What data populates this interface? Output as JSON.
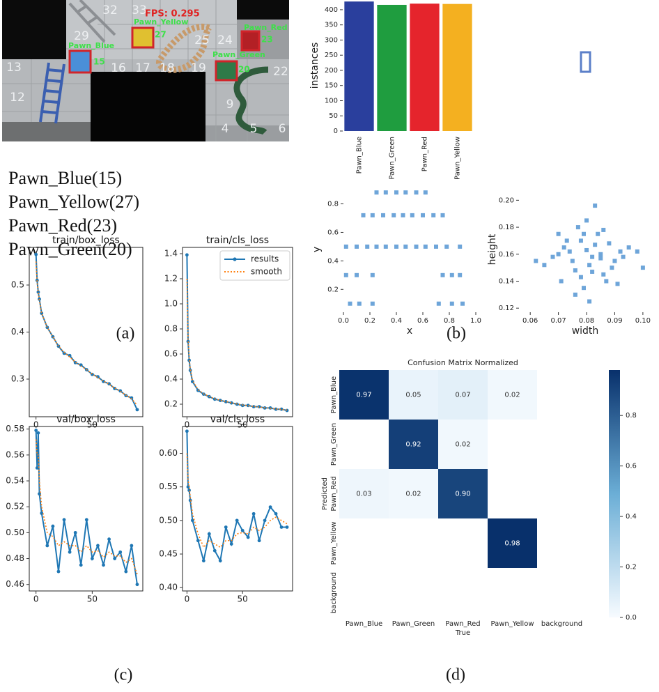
{
  "photo": {
    "fps": "FPS: 0.295",
    "board_numbers": [
      "32",
      "33",
      "29",
      "13",
      "16",
      "17",
      "18",
      "19",
      "25",
      "24",
      "22",
      "12",
      "9",
      "4",
      "5",
      "6"
    ],
    "detections": [
      "Pawn_Red",
      "Pawn_Blue",
      "Pawn_Yellow",
      "Pawn_Green"
    ],
    "box_numbers": [
      "15",
      "27",
      "23",
      "20"
    ]
  },
  "detections": [
    "Pawn_Blue(15)",
    "Pawn_Yellow(27)",
    "Pawn_Red(23)",
    "Pawn_Green(20)"
  ],
  "captions": [
    "(a)",
    "(b)",
    "(c)",
    "(d)"
  ],
  "chart_data": [
    {
      "type": "bar",
      "ylabel": "instances",
      "categories": [
        "Pawn_Blue",
        "Pawn_Green",
        "Pawn_Red",
        "Pawn_Yellow"
      ],
      "values": [
        427,
        416,
        420,
        419
      ],
      "colors": [
        "#2a3f9d",
        "#1f9d3f",
        "#e5242c",
        "#f4b020"
      ],
      "ylim": [
        0,
        432
      ],
      "yticks": [
        0,
        50,
        100,
        150,
        200,
        250,
        300,
        350,
        400
      ]
    },
    {
      "type": "scatter",
      "xlabel": "x",
      "ylabel": "y",
      "color": "#4a8fd0",
      "x": [
        0.25,
        0.32,
        0.4,
        0.47,
        0.55,
        0.62,
        0.15,
        0.22,
        0.3,
        0.38,
        0.45,
        0.52,
        0.6,
        0.68,
        0.75,
        0.02,
        0.1,
        0.18,
        0.25,
        0.32,
        0.4,
        0.47,
        0.55,
        0.62,
        0.7,
        0.78,
        0.88,
        0.02,
        0.1,
        0.22,
        0.75,
        0.82,
        0.88,
        0.05,
        0.12,
        0.22,
        0.72,
        0.82,
        0.9
      ],
      "y": [
        0.88,
        0.88,
        0.88,
        0.88,
        0.88,
        0.88,
        0.72,
        0.72,
        0.72,
        0.72,
        0.72,
        0.72,
        0.72,
        0.72,
        0.72,
        0.5,
        0.5,
        0.5,
        0.5,
        0.5,
        0.5,
        0.5,
        0.5,
        0.5,
        0.5,
        0.5,
        0.5,
        0.3,
        0.3,
        0.3,
        0.3,
        0.3,
        0.3,
        0.1,
        0.1,
        0.1,
        0.1,
        0.1,
        0.1
      ],
      "xlim": [
        0,
        1
      ],
      "ylim": [
        0.04,
        0.92
      ],
      "xticks": [
        {
          "value": 0,
          "label": "0.0"
        },
        0.2,
        0.4,
        0.6,
        0.8,
        {
          "value": 1,
          "label": "1.0"
        }
      ],
      "yticks": [
        0.2,
        0.4,
        0.6,
        0.8
      ]
    },
    {
      "type": "scatter",
      "xlabel": "width",
      "ylabel": "height",
      "color": "#4a8fd0",
      "x": [
        0.07,
        0.072,
        0.075,
        0.078,
        0.08,
        0.082,
        0.085,
        0.088,
        0.09,
        0.076,
        0.079,
        0.081,
        0.083,
        0.086,
        0.074,
        0.071,
        0.068,
        0.092,
        0.095,
        0.065,
        0.077,
        0.084,
        0.087,
        0.073,
        0.079,
        0.081,
        0.089,
        0.093,
        0.062,
        0.098,
        0.1,
        0.08,
        0.083,
        0.076,
        0.086,
        0.078,
        0.082,
        0.07,
        0.091,
        0.085
      ],
      "y": [
        0.16,
        0.165,
        0.155,
        0.17,
        0.163,
        0.158,
        0.16,
        0.168,
        0.155,
        0.148,
        0.175,
        0.152,
        0.167,
        0.145,
        0.162,
        0.14,
        0.158,
        0.162,
        0.165,
        0.152,
        0.18,
        0.175,
        0.14,
        0.17,
        0.135,
        0.125,
        0.15,
        0.158,
        0.155,
        0.162,
        0.15,
        0.185,
        0.196,
        0.13,
        0.178,
        0.143,
        0.147,
        0.175,
        0.138,
        0.157
      ],
      "xlim": [
        0.056,
        0.103
      ],
      "ylim": [
        0.117,
        0.21
      ],
      "xticks": [
        0.06,
        0.07,
        0.08,
        0.09,
        {
          "value": 0.1,
          "label": "0.10"
        }
      ],
      "yticks": [
        0.12,
        0.14,
        0.16,
        0.18,
        {
          "value": 0.2,
          "label": "0.20"
        }
      ]
    },
    {
      "type": "line",
      "title": "train/box_loss",
      "x": [
        0,
        1,
        2,
        3,
        5,
        10,
        15,
        20,
        25,
        30,
        35,
        40,
        45,
        50,
        55,
        60,
        65,
        70,
        75,
        80,
        85,
        90
      ],
      "series": [
        {
          "color": "#1f77b4",
          "values": [
            0.565,
            0.51,
            0.485,
            0.47,
            0.44,
            0.41,
            0.39,
            0.37,
            0.355,
            0.35,
            0.335,
            0.33,
            0.32,
            0.31,
            0.305,
            0.295,
            0.29,
            0.28,
            0.275,
            0.265,
            0.26,
            0.235
          ]
        },
        {
          "color": "#ff7f0e",
          "values": [
            0.55,
            0.505,
            0.485,
            0.468,
            0.44,
            0.41,
            0.39,
            0.37,
            0.357,
            0.347,
            0.336,
            0.328,
            0.32,
            0.311,
            0.303,
            0.296,
            0.289,
            0.281,
            0.274,
            0.266,
            0.258,
            0.245
          ]
        }
      ],
      "xlim": [
        -6,
        95
      ],
      "ylim": [
        0.22,
        0.58
      ],
      "xticks": [
        0,
        50
      ],
      "yticks": [
        0.3,
        0.4,
        0.5
      ]
    },
    {
      "type": "line",
      "title": "train/cls_loss",
      "legend": "upper right",
      "x": [
        0,
        1,
        2,
        3,
        5,
        10,
        15,
        20,
        25,
        30,
        35,
        40,
        45,
        50,
        55,
        60,
        65,
        70,
        75,
        80,
        85,
        90
      ],
      "series": [
        {
          "name": "results",
          "color": "#1f77b4",
          "values": [
            1.39,
            0.7,
            0.55,
            0.47,
            0.38,
            0.31,
            0.28,
            0.26,
            0.24,
            0.23,
            0.22,
            0.21,
            0.2,
            0.19,
            0.19,
            0.18,
            0.18,
            0.17,
            0.17,
            0.16,
            0.16,
            0.15
          ]
        },
        {
          "name": "smooth",
          "color": "#ff7f0e",
          "values": [
            1.2,
            0.72,
            0.57,
            0.48,
            0.39,
            0.315,
            0.283,
            0.262,
            0.243,
            0.231,
            0.221,
            0.211,
            0.202,
            0.194,
            0.188,
            0.182,
            0.177,
            0.172,
            0.167,
            0.162,
            0.158,
            0.153
          ]
        }
      ],
      "xlim": [
        -4,
        95
      ],
      "ylim": [
        0.1,
        1.45
      ],
      "xticks": [
        0,
        50
      ],
      "yticks": [
        0.2,
        0.4,
        0.6,
        0.8,
        {
          "value": 1,
          "label": "1.0"
        },
        1.2,
        1.4
      ]
    },
    {
      "type": "line",
      "title": "val/box_loss",
      "x": [
        0,
        1,
        2,
        3,
        5,
        10,
        15,
        20,
        25,
        30,
        35,
        40,
        45,
        50,
        55,
        60,
        65,
        70,
        75,
        80,
        85,
        90
      ],
      "series": [
        {
          "color": "#1f77b4",
          "values": [
            0.579,
            0.55,
            0.577,
            0.53,
            0.515,
            0.49,
            0.505,
            0.47,
            0.51,
            0.485,
            0.5,
            0.475,
            0.51,
            0.48,
            0.49,
            0.475,
            0.495,
            0.48,
            0.485,
            0.47,
            0.49,
            0.46
          ]
        },
        {
          "color": "#ff7f0e",
          "values": [
            0.572,
            0.56,
            0.56,
            0.54,
            0.52,
            0.5,
            0.497,
            0.49,
            0.493,
            0.49,
            0.49,
            0.485,
            0.49,
            0.485,
            0.486,
            0.481,
            0.485,
            0.482,
            0.482,
            0.477,
            0.48,
            0.468
          ]
        }
      ],
      "xlim": [
        -6,
        95
      ],
      "ylim": [
        0.455,
        0.582
      ],
      "xticks": [
        0,
        50
      ],
      "yticks": [
        0.46,
        0.48,
        {
          "value": 0.5,
          "label": "0.50"
        },
        0.52,
        0.54,
        0.56,
        0.58
      ]
    },
    {
      "type": "line",
      "title": "val/cls_loss",
      "x": [
        0,
        1,
        2,
        3,
        5,
        10,
        15,
        20,
        25,
        30,
        35,
        40,
        45,
        50,
        55,
        60,
        65,
        70,
        75,
        80,
        85,
        90
      ],
      "series": [
        {
          "color": "#1f77b4",
          "values": [
            0.633,
            0.55,
            0.545,
            0.53,
            0.5,
            0.47,
            0.44,
            0.48,
            0.455,
            0.44,
            0.49,
            0.465,
            0.5,
            0.485,
            0.475,
            0.51,
            0.47,
            0.5,
            0.52,
            0.51,
            0.49,
            0.49
          ]
        },
        {
          "color": "#ff7f0e",
          "values": [
            0.6,
            0.56,
            0.55,
            0.535,
            0.51,
            0.48,
            0.46,
            0.47,
            0.465,
            0.46,
            0.47,
            0.47,
            0.48,
            0.482,
            0.48,
            0.49,
            0.485,
            0.49,
            0.5,
            0.505,
            0.5,
            0.495
          ]
        }
      ],
      "xlim": [
        -4,
        95
      ],
      "ylim": [
        0.395,
        0.64
      ],
      "xticks": [
        0,
        50
      ],
      "yticks": [
        {
          "value": 0.4,
          "label": "0.40"
        },
        0.45,
        {
          "value": 0.5,
          "label": "0.50"
        },
        0.55,
        {
          "value": 0.6,
          "label": "0.60"
        }
      ]
    },
    {
      "type": "heatmap",
      "title": "Confusion Matrix Normalized",
      "xlabel": "True",
      "ylabel": "Predicted",
      "x_categories": [
        "Pawn_Blue",
        "Pawn_Green",
        "Pawn_Red",
        "Pawn_Yellow",
        "background"
      ],
      "y_categories": [
        "Pawn_Blue",
        "Pawn_Green",
        "Pawn_Red",
        "Pawn_Yellow",
        "background"
      ],
      "values": [
        [
          0.97,
          0.05,
          0.07,
          0.02,
          null
        ],
        [
          null,
          0.92,
          0.02,
          null,
          null
        ],
        [
          0.03,
          0.02,
          0.9,
          null,
          null
        ],
        [
          null,
          null,
          null,
          0.98,
          null
        ],
        [
          null,
          null,
          null,
          null,
          null
        ]
      ],
      "value_labels": [
        [
          "0.97",
          "0.05",
          "0.07",
          "0.02",
          null
        ],
        [
          null,
          "0.92",
          "0.02",
          null,
          null
        ],
        [
          "0.03",
          "0.02",
          "0.90",
          null,
          null
        ],
        [
          null,
          null,
          null,
          "0.98",
          null
        ],
        [
          null,
          null,
          null,
          null,
          null
        ]
      ],
      "clim": [
        0,
        0.98
      ],
      "cticks": [
        {
          "value": 0,
          "label": "0.0"
        },
        0.2,
        0.4,
        0.6,
        0.8
      ]
    }
  ]
}
